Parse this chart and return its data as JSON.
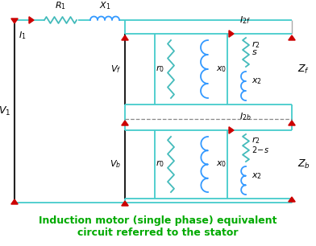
{
  "title_line1": "Induction motor (single phase) equivalent",
  "title_line2": "circuit referred to the stator",
  "title_color": "#00aa00",
  "title_fontsize": 9.0,
  "bg_color": "#ffffff",
  "teal_color": "#44cccc",
  "dark_color": "#222222",
  "arr_color": "#cc0000",
  "res_color": "#44bbbb",
  "ind_color": "#3399ff",
  "green_line": "#44cc44"
}
